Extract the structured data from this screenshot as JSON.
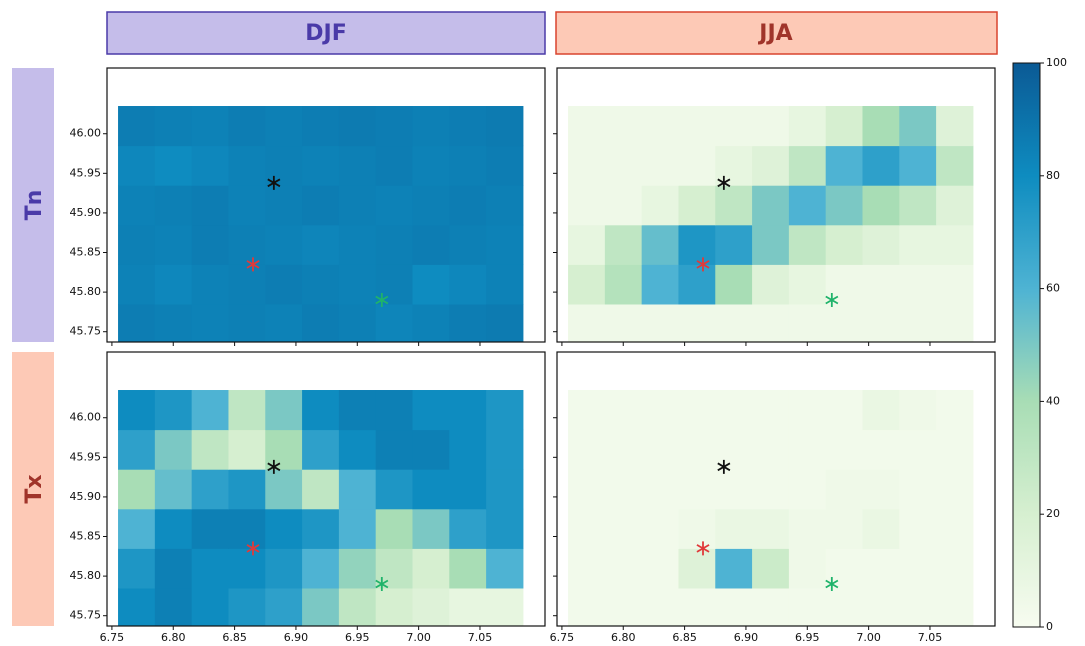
{
  "chart_data": {
    "type": "heatmap",
    "columns": [
      "DJF",
      "JJA"
    ],
    "rows": [
      "Tn",
      "Tx"
    ],
    "x": [
      6.77,
      6.8,
      6.83,
      6.86,
      6.89,
      6.92,
      6.95,
      6.98,
      7.01,
      7.04,
      7.07
    ],
    "y": [
      45.76,
      45.81,
      45.86,
      45.91,
      45.96,
      46.01
    ],
    "xlim": [
      6.746,
      7.103
    ],
    "ylim": [
      45.737,
      46.083
    ],
    "xticks": [
      6.75,
      {
        "value": 6.8,
        "label": "6.80"
      },
      6.85,
      {
        "value": 6.9,
        "label": "6.90"
      },
      6.95,
      {
        "value": 7.0,
        "label": "7.00"
      },
      7.05
    ],
    "yticks": [
      45.75,
      {
        "value": 45.8,
        "label": "45.80"
      },
      45.85,
      {
        "value": 45.9,
        "label": "45.90"
      },
      45.95,
      {
        "value": 46.0,
        "label": "46.00"
      }
    ],
    "z": [
      [
        [
          [
            86,
            85,
            84,
            85,
            84,
            86,
            85,
            83,
            84,
            86,
            87
          ],
          [
            84,
            82,
            84,
            85,
            86,
            85,
            84,
            85,
            80,
            82,
            84
          ],
          [
            85,
            84,
            86,
            85,
            84,
            83,
            84,
            85,
            86,
            85,
            84
          ],
          [
            84,
            85,
            86,
            84,
            85,
            86,
            85,
            84,
            85,
            86,
            85
          ],
          [
            82,
            80,
            82,
            84,
            85,
            84,
            85,
            86,
            84,
            85,
            86
          ],
          [
            86,
            85,
            84,
            86,
            85,
            86,
            87,
            86,
            85,
            86,
            87
          ]
        ],
        [
          [
            5,
            5,
            5,
            5,
            5,
            5,
            5,
            5,
            5,
            5,
            5
          ],
          [
            20,
            35,
            60,
            70,
            40,
            15,
            10,
            5,
            5,
            5,
            5
          ],
          [
            10,
            30,
            55,
            75,
            70,
            50,
            30,
            20,
            15,
            10,
            10
          ],
          [
            5,
            5,
            10,
            20,
            30,
            50,
            60,
            50,
            40,
            30,
            15
          ],
          [
            5,
            5,
            5,
            5,
            10,
            15,
            30,
            60,
            70,
            60,
            30
          ],
          [
            5,
            5,
            5,
            5,
            5,
            5,
            10,
            20,
            40,
            50,
            15
          ]
        ]
      ],
      [
        [
          [
            80,
            85,
            80,
            75,
            70,
            50,
            30,
            20,
            15,
            10,
            10
          ],
          [
            75,
            85,
            80,
            80,
            75,
            60,
            45,
            30,
            20,
            40,
            60
          ],
          [
            60,
            80,
            85,
            85,
            80,
            75,
            60,
            40,
            50,
            70,
            75
          ],
          [
            40,
            55,
            70,
            75,
            50,
            30,
            60,
            75,
            80,
            80,
            75
          ],
          [
            70,
            50,
            30,
            20,
            40,
            70,
            80,
            85,
            85,
            80,
            75
          ],
          [
            80,
            75,
            60,
            30,
            50,
            80,
            85,
            85,
            80,
            80,
            75
          ]
        ],
        [
          [
            3,
            3,
            3,
            3,
            3,
            3,
            3,
            3,
            3,
            3,
            3
          ],
          [
            3,
            3,
            3,
            15,
            60,
            25,
            5,
            3,
            3,
            3,
            3
          ],
          [
            3,
            3,
            3,
            5,
            8,
            8,
            5,
            5,
            8,
            3,
            3
          ],
          [
            3,
            3,
            3,
            3,
            3,
            3,
            3,
            5,
            5,
            3,
            3
          ],
          [
            3,
            3,
            3,
            3,
            3,
            3,
            3,
            3,
            3,
            3,
            3
          ],
          [
            3,
            3,
            3,
            3,
            3,
            3,
            3,
            3,
            8,
            5,
            3
          ]
        ]
      ]
    ],
    "colormap": [
      "#f7fcf0",
      "#d6efd0",
      "#a8ddb5",
      "#4eb3d3",
      "#0e8cc0",
      "#0b5a95"
    ],
    "clim": [
      0,
      100
    ],
    "cticks": [
      0,
      20,
      40,
      60,
      80,
      100
    ],
    "markers": [
      {
        "x": 6.882,
        "y": 45.938,
        "color": "#111111"
      },
      {
        "x": 6.865,
        "y": 45.835,
        "color": "#e03a3a"
      },
      {
        "x": 6.97,
        "y": 45.79,
        "color": "#1fb36a"
      }
    ]
  }
}
